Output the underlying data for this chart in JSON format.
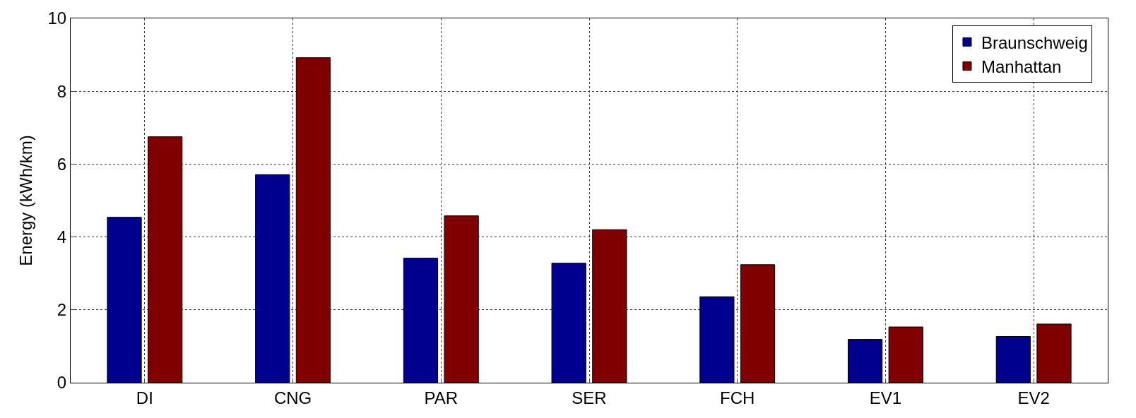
{
  "chart_data": {
    "type": "bar",
    "ylabel": "Energy (kWh/km)",
    "categories": [
      "DI",
      "CNG",
      "PAR",
      "SER",
      "FCH",
      "EV1",
      "EV2"
    ],
    "series": [
      {
        "name": "Braunschweig",
        "color": "#00008f",
        "values": [
          4.54,
          5.71,
          3.42,
          3.28,
          2.36,
          1.19,
          1.27
        ]
      },
      {
        "name": "Manhattan",
        "color": "#800000",
        "values": [
          6.75,
          8.92,
          4.58,
          4.2,
          3.24,
          1.53,
          1.61
        ]
      }
    ],
    "ylim": [
      0,
      10
    ],
    "yticks": [
      0,
      2,
      4,
      6,
      8,
      10
    ],
    "grid": true,
    "legend": "top right"
  }
}
